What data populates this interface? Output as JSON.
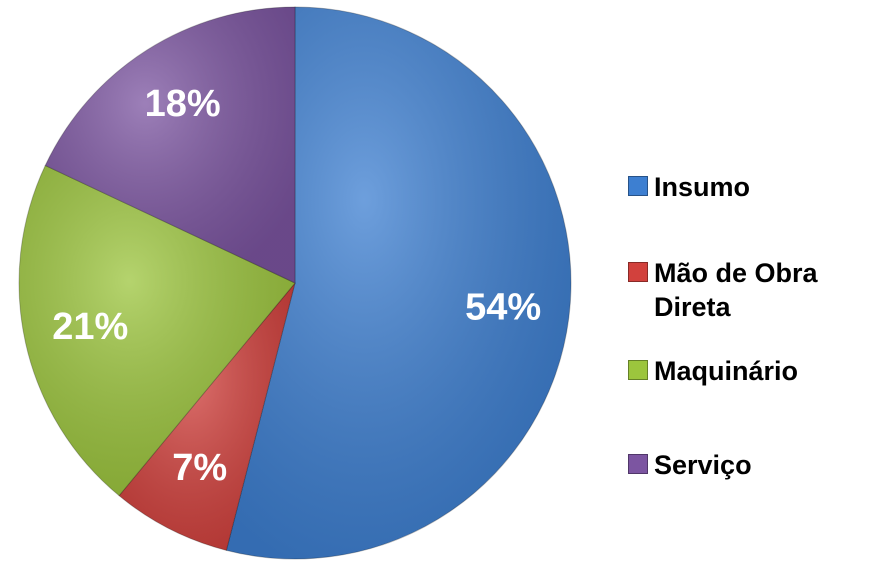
{
  "chart_data": {
    "type": "pie",
    "categories": [
      "Insumo",
      "Mão de Obra Direta",
      "Maquinário",
      "Serviço"
    ],
    "values": [
      54,
      7,
      21,
      18
    ],
    "value_labels": [
      "54%",
      "7%",
      "21%",
      "18%"
    ],
    "colors": [
      "#3d7fd1",
      "#d2413d",
      "#9cc53d",
      "#7c55a1"
    ],
    "legend": "right"
  }
}
